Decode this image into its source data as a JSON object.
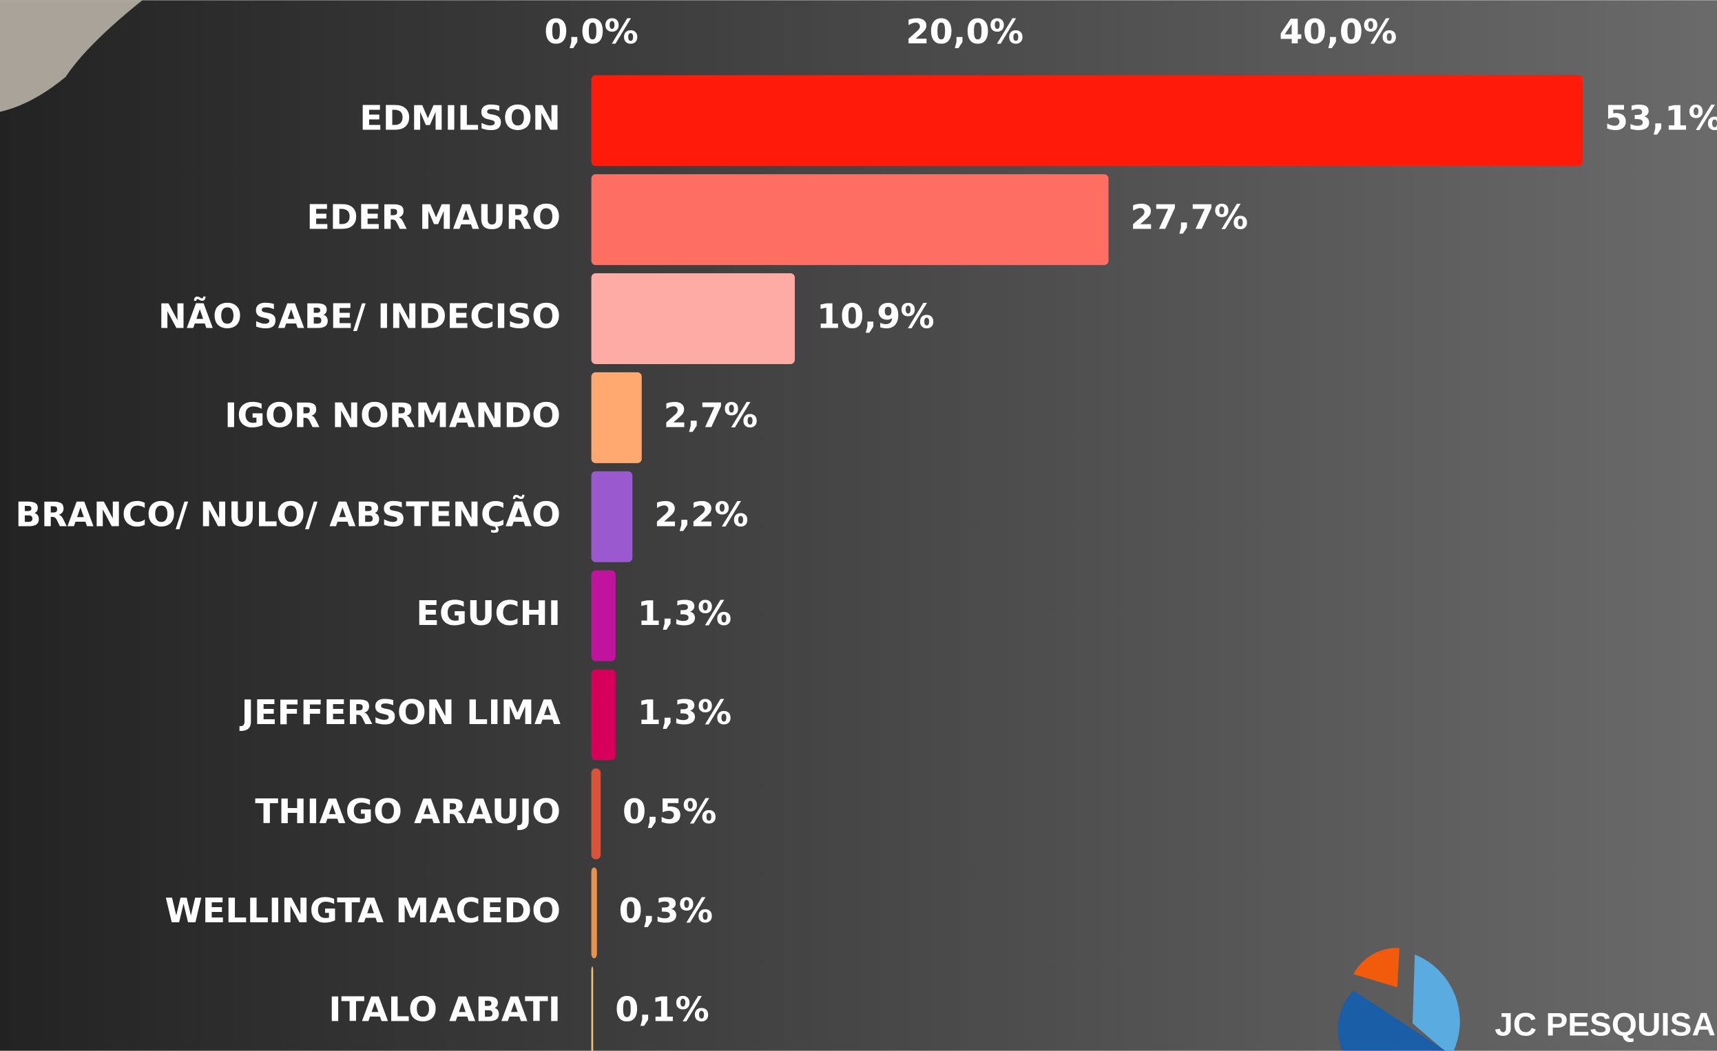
{
  "chart_data": {
    "type": "bar",
    "orientation": "horizontal",
    "categories": [
      "EDMILSON",
      "EDER MAURO",
      "NÃO SABE/ INDECISO",
      "IGOR NORMANDO",
      "BRANCO/ NULO/ ABSTENÇÃO",
      "EGUCHI",
      "JEFFERSON LIMA",
      "THIAGO ARAUJO",
      "WELLINGTA MACEDO",
      "ITALO ABATI"
    ],
    "values": [
      53.1,
      27.7,
      10.9,
      2.7,
      2.2,
      1.3,
      1.3,
      0.5,
      0.3,
      0.1
    ],
    "value_labels": [
      "53,1%",
      "27,7%",
      "10,9%",
      "2,7%",
      "2,2%",
      "1,3%",
      "1,3%",
      "0,5%",
      "0,3%",
      "0,1%"
    ],
    "colors": [
      "#ff1a0a",
      "#ff6e63",
      "#ffaba5",
      "#ffa970",
      "#9b59d0",
      "#c0149e",
      "#d6005a",
      "#d9533a",
      "#e8924e",
      "#f0c070"
    ],
    "xlim": [
      0,
      60
    ],
    "xticks": [
      {
        "value": 0,
        "label": "0,0%"
      },
      {
        "value": 20,
        "label": "20,0%"
      },
      {
        "value": 40,
        "label": "40,0%"
      }
    ],
    "grid": false
  },
  "logo": "JC PESQUISA"
}
